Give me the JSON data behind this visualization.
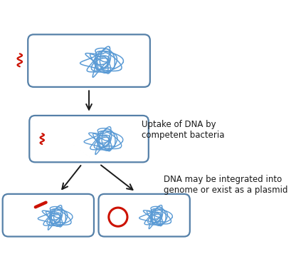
{
  "bg_color": "#ffffff",
  "cell_color": "#5580a8",
  "cell_linewidth": 1.6,
  "dna_color": "#5b9bd5",
  "red_color": "#cc1100",
  "arrow_color": "#1a1a1a",
  "text_color": "#1a1a1a",
  "label1": "Uptake of DNA by\ncompetent bacteria",
  "label2": "DNA may be integrated into\ngenome or exist as a plasmid",
  "label_fontsize": 8.5,
  "fig_w": 4.1,
  "fig_h": 3.77,
  "dpi": 100
}
